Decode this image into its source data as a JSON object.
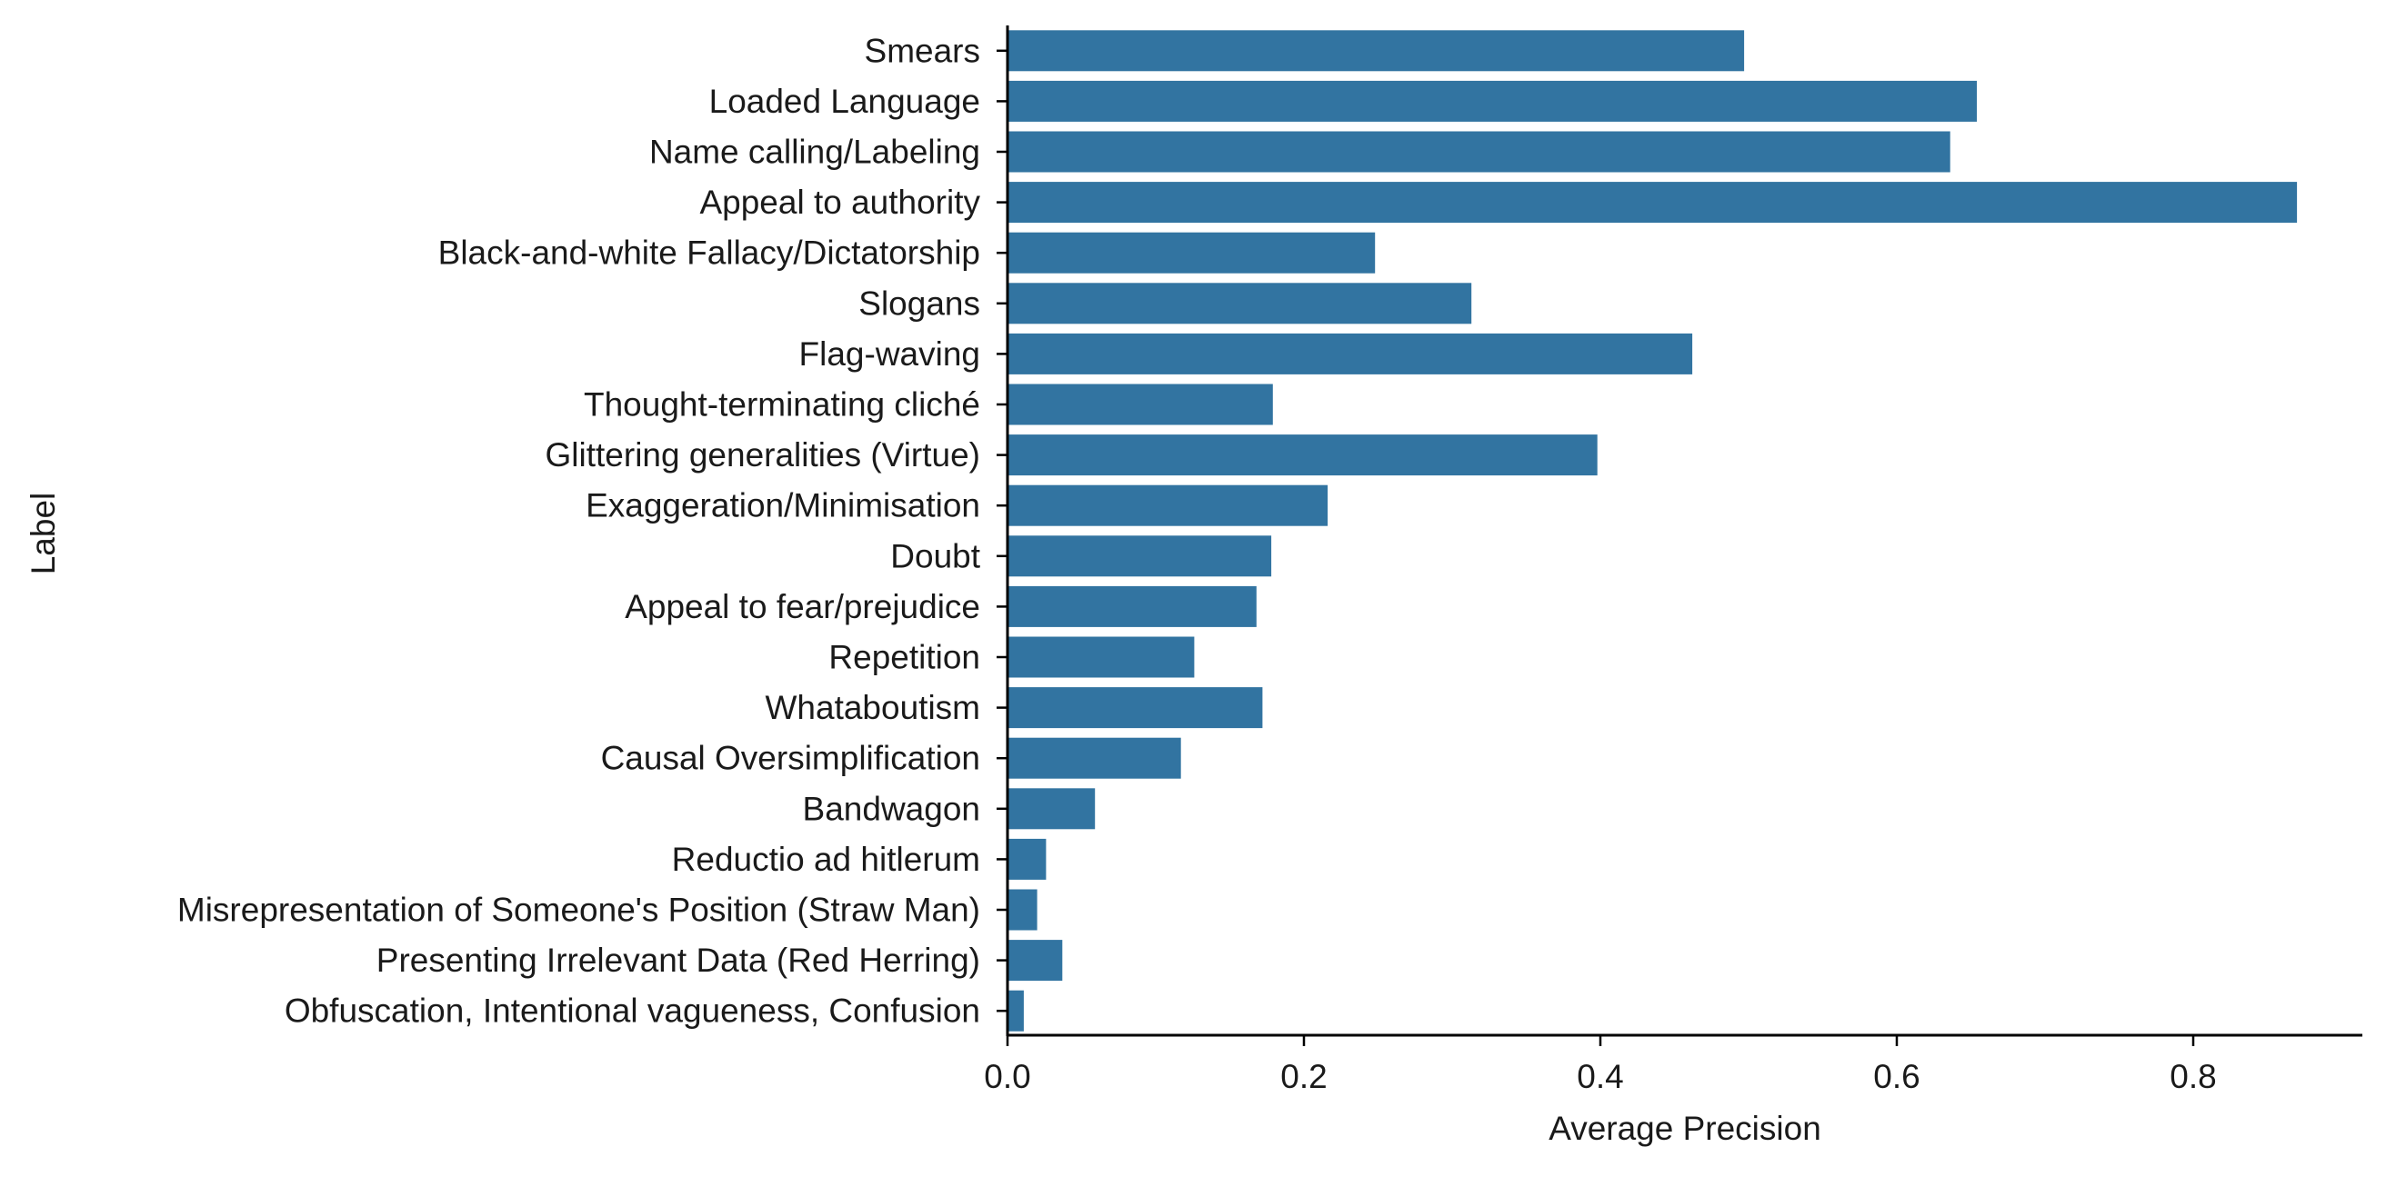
{
  "chart_data": {
    "type": "bar",
    "orientation": "horizontal",
    "xlabel": "Average Precision",
    "ylabel": "Label",
    "xlim": [
      0.0,
      0.914
    ],
    "xticks": [
      "0.0",
      "0.2",
      "0.4",
      "0.6",
      "0.8"
    ],
    "xtick_values": [
      0.0,
      0.2,
      0.4,
      0.6,
      0.8
    ],
    "grid": false,
    "bar_color": "#3274a1",
    "categories": [
      "Smears",
      "Loaded Language",
      "Name calling/Labeling",
      "Appeal to authority",
      "Black-and-white Fallacy/Dictatorship",
      "Slogans",
      "Flag-waving",
      "Thought-terminating cliché",
      "Glittering generalities (Virtue)",
      "Exaggeration/Minimisation",
      "Doubt",
      "Appeal to fear/prejudice",
      "Repetition",
      "Whataboutism",
      "Causal Oversimplification",
      "Bandwagon",
      "Reductio ad hitlerum",
      "Misrepresentation of Someone's Position (Straw Man)",
      "Presenting Irrelevant Data (Red Herring)",
      "Obfuscation, Intentional vagueness, Confusion"
    ],
    "values": [
      0.497,
      0.654,
      0.636,
      0.87,
      0.248,
      0.313,
      0.462,
      0.179,
      0.398,
      0.216,
      0.178,
      0.168,
      0.126,
      0.172,
      0.117,
      0.059,
      0.026,
      0.02,
      0.037,
      0.011
    ]
  }
}
